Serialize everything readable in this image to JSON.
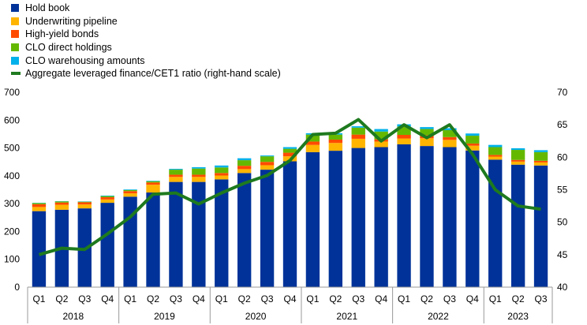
{
  "chart_data": {
    "type": "bar",
    "stacked": true,
    "categories": [
      "Q1",
      "Q2",
      "Q3",
      "Q4",
      "Q1",
      "Q2",
      "Q3",
      "Q4",
      "Q1",
      "Q2",
      "Q3",
      "Q4",
      "Q1",
      "Q2",
      "Q3",
      "Q4",
      "Q1",
      "Q2",
      "Q3",
      "Q4",
      "Q1",
      "Q2",
      "Q3"
    ],
    "years": [
      {
        "label": "2018",
        "count": 4
      },
      {
        "label": "2019",
        "count": 4
      },
      {
        "label": "2020",
        "count": 4
      },
      {
        "label": "2021",
        "count": 4
      },
      {
        "label": "2022",
        "count": 4
      },
      {
        "label": "2023",
        "count": 3
      }
    ],
    "ylim_left": [
      0,
      700
    ],
    "yticks_left": [
      0,
      100,
      200,
      300,
      400,
      500,
      600,
      700
    ],
    "ylim_right": [
      40,
      70
    ],
    "yticks_right": [
      40,
      45,
      50,
      55,
      60,
      65,
      70
    ],
    "series": [
      {
        "name": "Hold book",
        "color": "#003299",
        "values": [
          273,
          278,
          283,
          303,
          325,
          340,
          378,
          378,
          387,
          410,
          422,
          452,
          485,
          490,
          500,
          503,
          513,
          507,
          503,
          491,
          458,
          440,
          437
        ]
      },
      {
        "name": "Underwriting pipeline",
        "color": "#ffb400",
        "values": [
          15,
          18,
          14,
          12,
          12,
          28,
          18,
          18,
          14,
          14,
          16,
          18,
          26,
          28,
          33,
          20,
          21,
          28,
          26,
          17,
          11,
          11,
          11
        ]
      },
      {
        "name": "High-yield bonds",
        "color": "#ff4b00",
        "values": [
          10,
          8,
          8,
          8,
          8,
          8,
          8,
          8,
          9,
          12,
          12,
          13,
          12,
          12,
          15,
          8,
          13,
          11,
          10,
          8,
          6,
          6,
          6
        ]
      },
      {
        "name": "CLO direct holdings",
        "color": "#65b800",
        "values": [
          4,
          4,
          2,
          4,
          4,
          4,
          18,
          22,
          20,
          20,
          20,
          14,
          25,
          18,
          25,
          28,
          30,
          22,
          25,
          28,
          28,
          36,
          31
        ]
      },
      {
        "name": "CLO warehousing amounts",
        "color": "#00b1ea",
        "values": [
          1,
          1,
          1,
          2,
          2,
          2,
          3,
          5,
          7,
          7,
          3,
          6,
          5,
          5,
          5,
          9,
          8,
          7,
          7,
          8,
          8,
          6,
          7
        ]
      }
    ],
    "line": {
      "name": "Aggregate leveraged finance/CET1 ratio (right-hand scale)",
      "color": "#1e7a1e",
      "values": [
        45.0,
        46.0,
        45.8,
        48.2,
        50.8,
        54.3,
        54.5,
        52.8,
        54.5,
        56.0,
        57.2,
        59.5,
        63.5,
        63.7,
        65.8,
        62.5,
        65.0,
        63.0,
        65.0,
        60.5,
        55.0,
        52.5,
        52.0
      ]
    },
    "legend": {
      "placement": "top-left"
    },
    "grid": false
  }
}
